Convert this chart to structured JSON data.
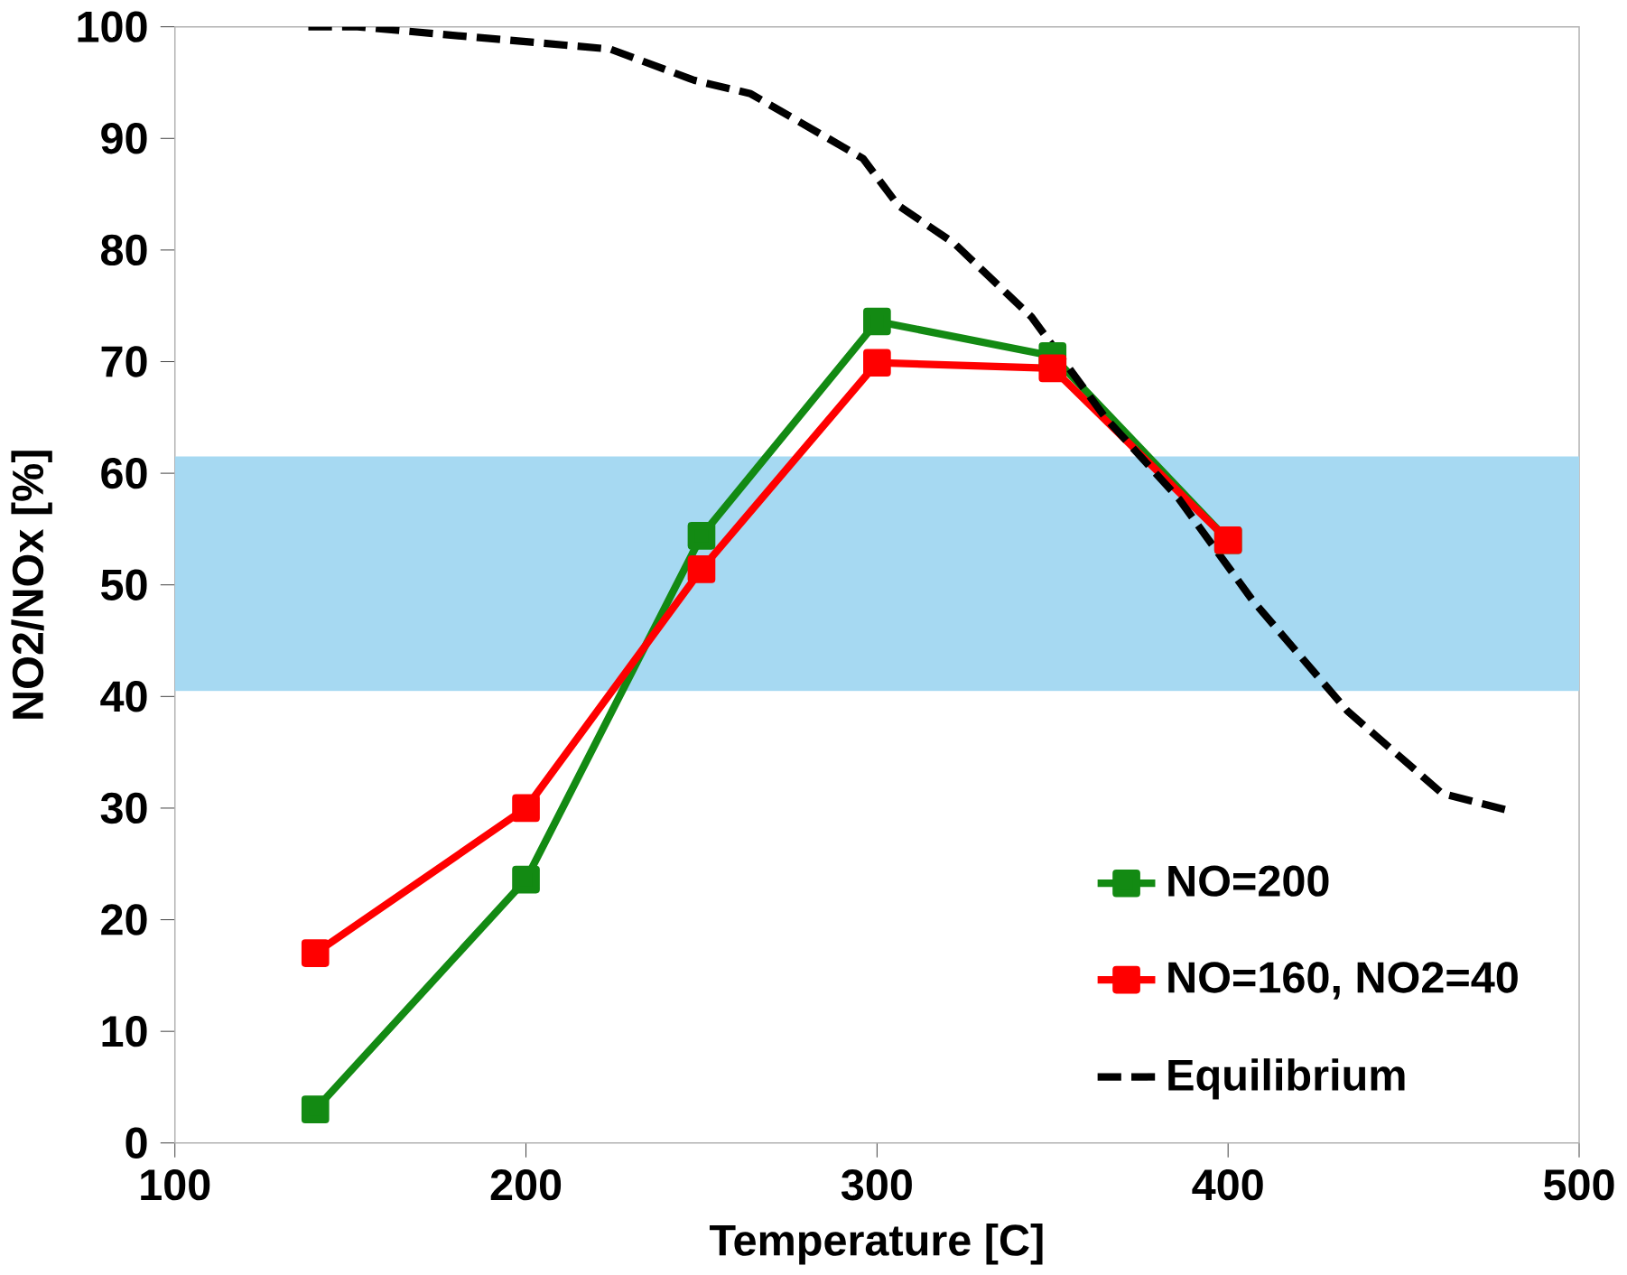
{
  "chart_data": {
    "type": "line",
    "xlabel": "Temperature [C]",
    "ylabel": "NO2/NOx  [%]",
    "xlim": [
      100,
      500
    ],
    "xticks": [
      100,
      200,
      300,
      400,
      500
    ],
    "ylim": [
      0,
      100
    ],
    "yticks": [
      0,
      10,
      20,
      30,
      40,
      50,
      60,
      70,
      80,
      90,
      100
    ],
    "grid": false,
    "legend": "bottom right",
    "bands": [
      {
        "axis": "y",
        "from": 40.5,
        "to": 61.5,
        "color": "#a6d9f2"
      }
    ],
    "series": [
      {
        "name": "NO=200",
        "color": "#138a13",
        "marker": "square",
        "line_style": "solid",
        "x": [
          140,
          200,
          250,
          300,
          350,
          400
        ],
        "values": [
          3.0,
          23.6,
          54.4,
          73.6,
          70.5,
          54.0
        ]
      },
      {
        "name": "NO=160, NO2=40",
        "color": "#ff0000",
        "marker": "square",
        "line_style": "solid",
        "x": [
          140,
          200,
          250,
          300,
          350,
          400
        ],
        "values": [
          17.0,
          30.0,
          51.4,
          69.9,
          69.4,
          54.0
        ]
      },
      {
        "name": "Equilibrium",
        "color": "#000000",
        "marker": "none",
        "line_style": "dashed",
        "x": [
          138,
          152,
          195,
          224,
          248,
          264,
          296,
          306,
          322,
          344,
          365,
          386,
          407,
          434,
          461,
          481
        ],
        "values": [
          100,
          100,
          98.8,
          98,
          95.2,
          94,
          88.2,
          84,
          80.6,
          74,
          65,
          57.7,
          48.6,
          38.7,
          31.3,
          29.7
        ]
      }
    ]
  }
}
